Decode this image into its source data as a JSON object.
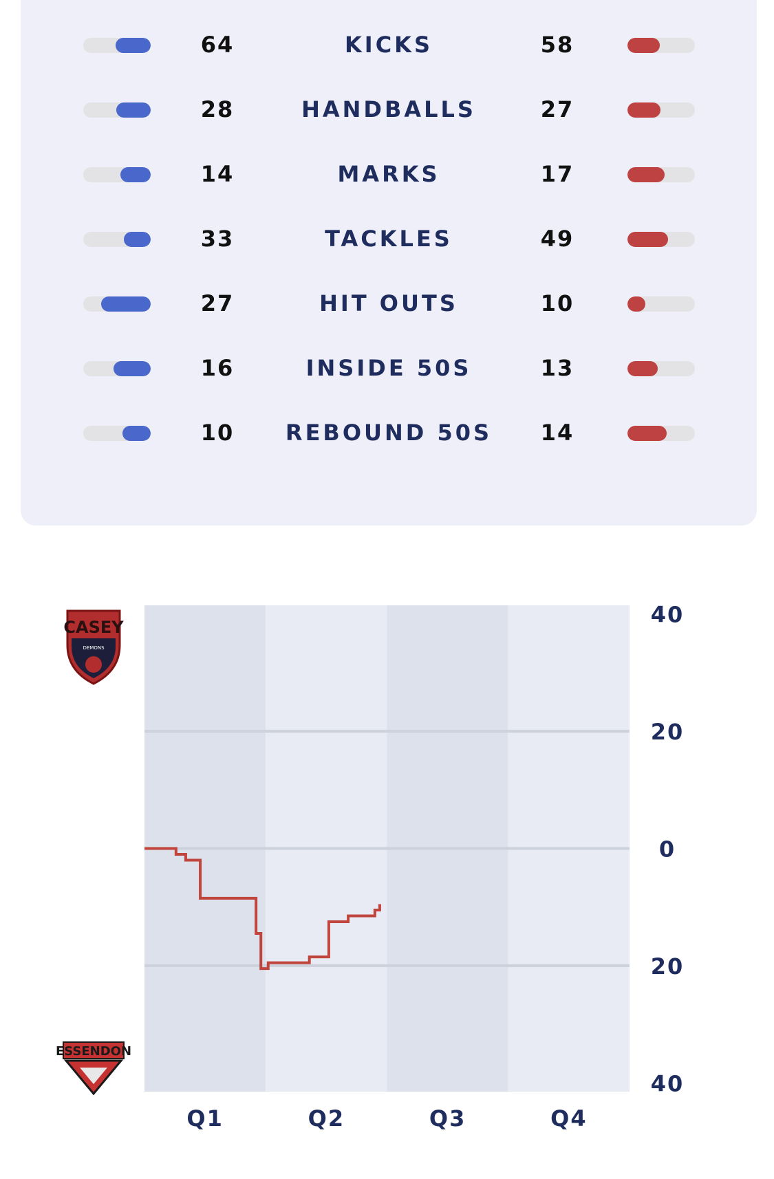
{
  "team_stats": [
    {
      "label": "KICKS",
      "home": 64,
      "away": 58
    },
    {
      "label": "HANDBALLS",
      "home": 28,
      "away": 27
    },
    {
      "label": "MARKS",
      "home": 14,
      "away": 17
    },
    {
      "label": "TACKLES",
      "home": 33,
      "away": 49
    },
    {
      "label": "HIT OUTS",
      "home": 27,
      "away": 10
    },
    {
      "label": "INSIDE 50S",
      "home": 16,
      "away": 13
    },
    {
      "label": "REBOUND 50S",
      "home": 10,
      "away": 14
    }
  ],
  "colors": {
    "home": "#4a68cc",
    "away": "#bf4242",
    "worm_line": "#c0453d",
    "navy": "#1f2c5e",
    "card_bg": "#eeeff8"
  },
  "logos": {
    "top": {
      "text": "CASEY",
      "sub": "DEMONS"
    },
    "bottom": {
      "text": "ESSENDON"
    }
  },
  "chart_data": {
    "type": "line",
    "title": "",
    "xlabel": "",
    "ylabel": "",
    "x_axis": {
      "categories": [
        "Q1",
        "Q2",
        "Q3",
        "Q4"
      ]
    },
    "y_axis": {
      "range": [
        -40,
        40
      ],
      "ticks": [
        40,
        20,
        0,
        20,
        40
      ],
      "note": "margin: top half = Casey leading, bottom half = Essendon leading"
    },
    "grid": true,
    "series": [
      {
        "values_note": "x = game progress in quarters (0-4), y = margin (positive = top team ahead)",
        "points": [
          [
            0.0,
            0
          ],
          [
            0.26,
            0
          ],
          [
            0.26,
            -1
          ],
          [
            0.34,
            -1
          ],
          [
            0.34,
            -2
          ],
          [
            0.46,
            -2
          ],
          [
            0.46,
            -8.5
          ],
          [
            0.92,
            -8.5
          ],
          [
            0.92,
            -14.5
          ],
          [
            0.96,
            -14.5
          ],
          [
            0.96,
            -20.5
          ],
          [
            1.02,
            -20.5
          ],
          [
            1.02,
            -19.5
          ],
          [
            1.36,
            -19.5
          ],
          [
            1.36,
            -18.5
          ],
          [
            1.52,
            -18.5
          ],
          [
            1.52,
            -12.5
          ],
          [
            1.68,
            -12.5
          ],
          [
            1.68,
            -11.5
          ],
          [
            1.9,
            -11.5
          ],
          [
            1.9,
            -10.5
          ],
          [
            1.94,
            -10.5
          ],
          [
            1.94,
            -9.5
          ]
        ]
      }
    ]
  }
}
